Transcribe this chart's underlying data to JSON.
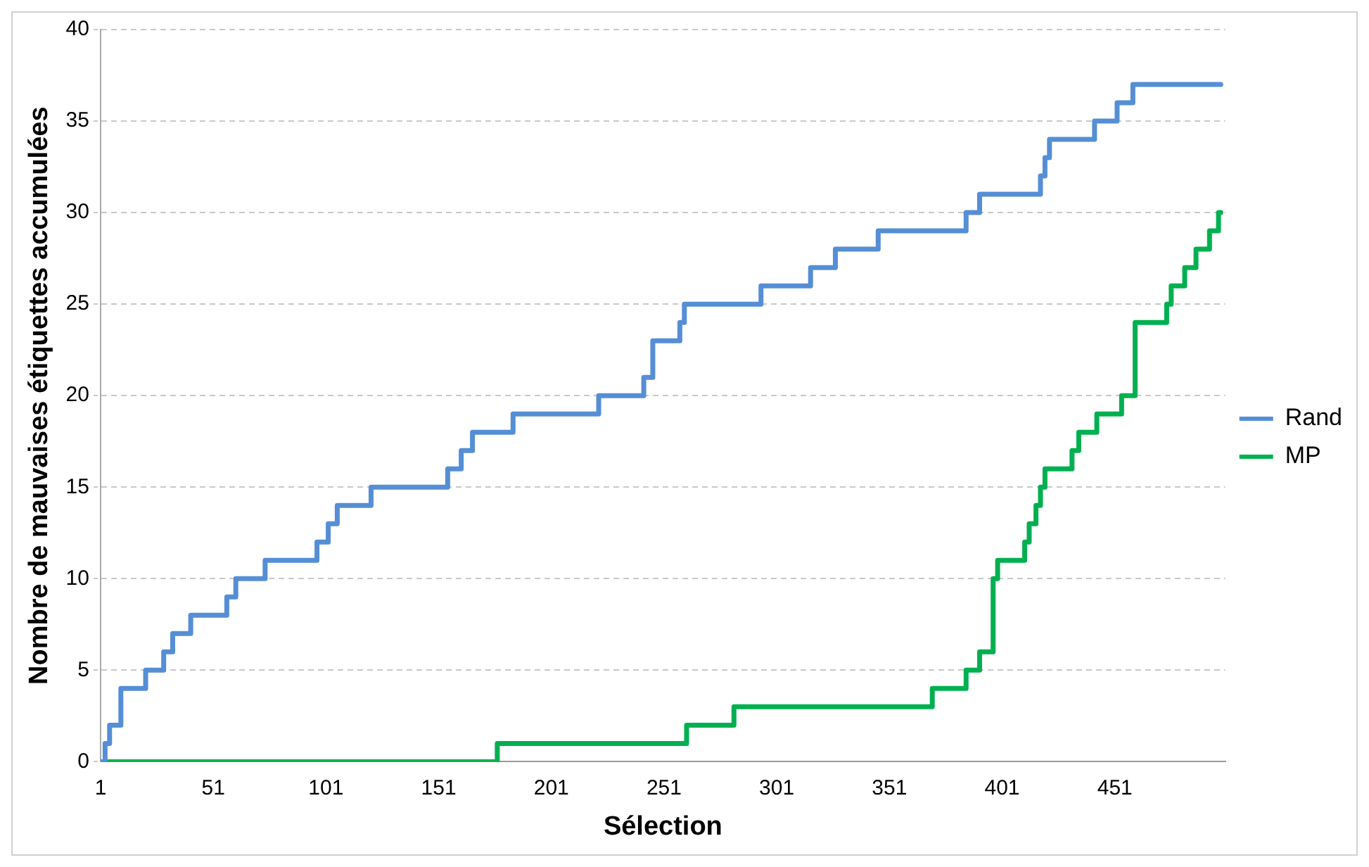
{
  "chart_data": {
    "type": "step",
    "xlabel": "Sélection",
    "ylabel": "Nombre de mauvaises étiquettes accumulées",
    "xlim": [
      1,
      500
    ],
    "xticks": [
      1,
      51,
      101,
      151,
      201,
      251,
      301,
      351,
      401,
      451
    ],
    "ylim": [
      0,
      40
    ],
    "yticks": [
      0,
      5,
      10,
      15,
      20,
      25,
      30,
      35,
      40
    ],
    "grid": "y",
    "legend": "right",
    "marker": "none",
    "line_style": "solid",
    "series": [
      {
        "name": "Rand",
        "color": "#558ed5",
        "x": [
          1,
          3,
          5,
          10,
          21,
          29,
          33,
          41,
          57,
          61,
          74,
          97,
          102,
          106,
          121,
          155,
          161,
          166,
          184,
          222,
          242,
          246,
          258,
          260,
          294,
          316,
          327,
          346,
          385,
          391,
          418,
          420,
          422,
          442,
          452,
          459,
          498
        ],
        "values": [
          0,
          1,
          2,
          4,
          5,
          6,
          7,
          8,
          9,
          10,
          11,
          12,
          13,
          14,
          15,
          16,
          17,
          18,
          19,
          20,
          21,
          23,
          24,
          25,
          26,
          27,
          28,
          29,
          30,
          31,
          32,
          33,
          34,
          35,
          36,
          37,
          37
        ]
      },
      {
        "name": "MP",
        "color": "#00b050",
        "x": [
          1,
          177,
          261,
          282,
          370,
          385,
          391,
          397,
          399,
          411,
          413,
          416,
          418,
          420,
          432,
          435,
          443,
          454,
          460,
          474,
          476,
          482,
          487,
          493,
          497,
          498
        ],
        "values": [
          0,
          1,
          2,
          3,
          4,
          5,
          6,
          10,
          11,
          12,
          13,
          14,
          15,
          16,
          17,
          18,
          19,
          20,
          24,
          25,
          26,
          27,
          28,
          29,
          30,
          30
        ]
      }
    ]
  }
}
